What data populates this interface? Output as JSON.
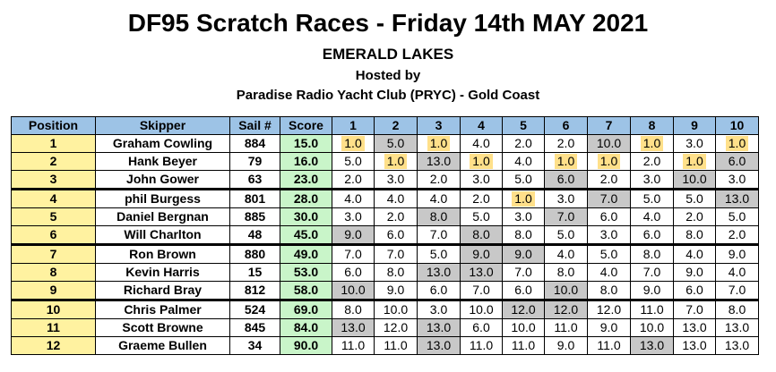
{
  "header": {
    "title": "DF95 Scratch Races - Friday 14th MAY  2021",
    "venue": "EMERALD LAKES",
    "hosted": "Hosted by",
    "club": "Paradise Radio Yacht Club (PRYC) - Gold Coast"
  },
  "columns": {
    "position": "Position",
    "skipper": "Skipper",
    "sail": "Sail #",
    "score": "Score",
    "races": [
      "1",
      "2",
      "3",
      "4",
      "5",
      "6",
      "7",
      "8",
      "9",
      "10"
    ]
  },
  "colors": {
    "header_bg": "#9dc3e6",
    "position_bg": "#fff2a0",
    "score_bg": "#c9f5c9",
    "win_highlight": "#ffe08a",
    "dropped_bg": "#c8c8c8"
  },
  "rows": [
    {
      "position": "1",
      "skipper": "Graham Cowling",
      "sail": "884",
      "score": "15.0",
      "races": [
        "1.0",
        "5.0",
        "1.0",
        "4.0",
        "2.0",
        "2.0",
        "10.0",
        "1.0",
        "3.0",
        "1.0"
      ],
      "highlight": [
        0,
        2,
        7,
        9
      ],
      "dropped": [
        1,
        6
      ]
    },
    {
      "position": "2",
      "skipper": "Hank Beyer",
      "sail": "79",
      "score": "16.0",
      "races": [
        "5.0",
        "1.0",
        "13.0",
        "1.0",
        "4.0",
        "1.0",
        "1.0",
        "2.0",
        "1.0",
        "6.0"
      ],
      "highlight": [
        1,
        3,
        5,
        6,
        8
      ],
      "dropped": [
        2,
        9
      ]
    },
    {
      "position": "3",
      "skipper": "John Gower",
      "sail": "63",
      "score": "23.0",
      "races": [
        "2.0",
        "3.0",
        "2.0",
        "3.0",
        "5.0",
        "6.0",
        "2.0",
        "3.0",
        "10.0",
        "3.0"
      ],
      "highlight": [],
      "dropped": [
        5,
        8
      ]
    },
    {
      "position": "4",
      "skipper": "phil Burgess",
      "sail": "801",
      "score": "28.0",
      "races": [
        "4.0",
        "4.0",
        "4.0",
        "2.0",
        "1.0",
        "3.0",
        "7.0",
        "5.0",
        "5.0",
        "13.0"
      ],
      "highlight": [
        4
      ],
      "dropped": [
        6,
        9
      ]
    },
    {
      "position": "5",
      "skipper": "Daniel Bergnan",
      "sail": "885",
      "score": "30.0",
      "races": [
        "3.0",
        "2.0",
        "8.0",
        "5.0",
        "3.0",
        "7.0",
        "6.0",
        "4.0",
        "2.0",
        "5.0"
      ],
      "highlight": [],
      "dropped": [
        2,
        5
      ]
    },
    {
      "position": "6",
      "skipper": "Will Charlton",
      "sail": "48",
      "score": "45.0",
      "races": [
        "9.0",
        "6.0",
        "7.0",
        "8.0",
        "8.0",
        "5.0",
        "3.0",
        "6.0",
        "8.0",
        "2.0"
      ],
      "highlight": [],
      "dropped": [
        0,
        3
      ]
    },
    {
      "position": "7",
      "skipper": "Ron Brown",
      "sail": "880",
      "score": "49.0",
      "races": [
        "7.0",
        "7.0",
        "5.0",
        "9.0",
        "9.0",
        "4.0",
        "5.0",
        "8.0",
        "4.0",
        "9.0"
      ],
      "highlight": [],
      "dropped": [
        3,
        4
      ]
    },
    {
      "position": "8",
      "skipper": "Kevin Harris",
      "sail": "15",
      "score": "53.0",
      "races": [
        "6.0",
        "8.0",
        "13.0",
        "13.0",
        "7.0",
        "8.0",
        "4.0",
        "7.0",
        "9.0",
        "4.0"
      ],
      "highlight": [],
      "dropped": [
        2,
        3
      ]
    },
    {
      "position": "9",
      "skipper": "Richard Bray",
      "sail": "812",
      "score": "58.0",
      "races": [
        "10.0",
        "9.0",
        "6.0",
        "7.0",
        "6.0",
        "10.0",
        "8.0",
        "9.0",
        "6.0",
        "7.0"
      ],
      "highlight": [],
      "dropped": [
        0,
        5
      ]
    },
    {
      "position": "10",
      "skipper": "Chris Palmer",
      "sail": "524",
      "score": "69.0",
      "races": [
        "8.0",
        "10.0",
        "3.0",
        "10.0",
        "12.0",
        "12.0",
        "12.0",
        "11.0",
        "7.0",
        "8.0"
      ],
      "highlight": [],
      "dropped": [
        4,
        5
      ]
    },
    {
      "position": "11",
      "skipper": "Scott Browne",
      "sail": "845",
      "score": "84.0",
      "races": [
        "13.0",
        "12.0",
        "13.0",
        "6.0",
        "10.0",
        "11.0",
        "9.0",
        "10.0",
        "13.0",
        "13.0"
      ],
      "highlight": [],
      "dropped": [
        0,
        2
      ]
    },
    {
      "position": "12",
      "skipper": "Graeme Bullen",
      "sail": "34",
      "score": "90.0",
      "races": [
        "11.0",
        "11.0",
        "13.0",
        "11.0",
        "11.0",
        "9.0",
        "11.0",
        "13.0",
        "13.0",
        "13.0"
      ],
      "highlight": [],
      "dropped": [
        2,
        7
      ]
    }
  ]
}
